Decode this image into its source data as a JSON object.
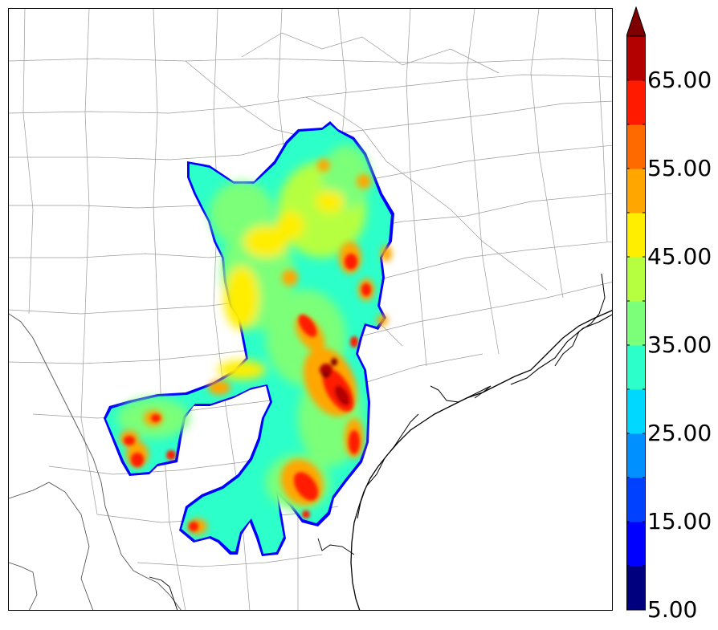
{
  "colorbar": {
    "colors": [
      "#00007f",
      "#0000ff",
      "#0040ff",
      "#0090ff",
      "#00d8ff",
      "#2cffc9",
      "#7cff79",
      "#b6ff40",
      "#ffee00",
      "#ffa600",
      "#ff6a00",
      "#ff1a00",
      "#b30000"
    ],
    "extend_color": "#7f0000",
    "tick_labels": [
      "5.00",
      "15.00",
      "25.00",
      "35.00",
      "45.00",
      "55.00",
      "65.00"
    ]
  }
}
